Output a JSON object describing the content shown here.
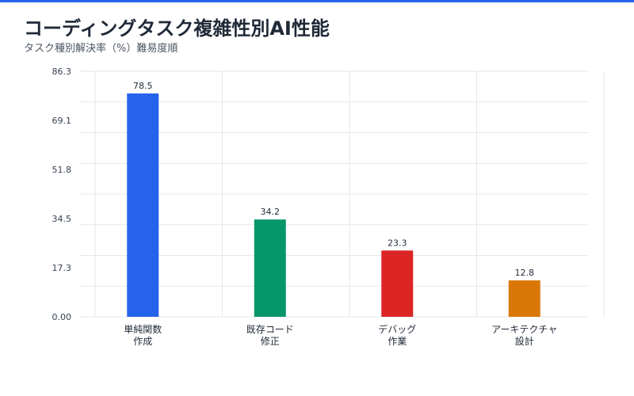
{
  "header": {
    "title": "コーディングタスク複雑性別AI性能",
    "subtitle": "タスク種別解決率（%）難易度順"
  },
  "colors": {
    "accent": "#2563eb",
    "grid": "#e5e7eb"
  },
  "chart_data": {
    "type": "bar",
    "title": "コーディングタスク複雑性別AI性能",
    "subtitle": "タスク種別解決率（%）難易度順",
    "xlabel": "",
    "ylabel": "",
    "ylim": [
      0,
      86.3
    ],
    "yticks": [
      "0.00",
      "17.3",
      "34.5",
      "51.8",
      "69.1",
      "86.3"
    ],
    "grid": true,
    "categories": [
      [
        "単純関数",
        "作成"
      ],
      [
        "既存コード",
        "修正"
      ],
      [
        "デバッグ",
        "作業"
      ],
      [
        "アーキテクチャ",
        "設計"
      ]
    ],
    "values": [
      78.5,
      34.2,
      23.3,
      12.8
    ],
    "value_labels": [
      "78.5",
      "34.2",
      "23.3",
      "12.8"
    ],
    "bar_colors": [
      "#2563eb",
      "#059669",
      "#dc2626",
      "#d97706"
    ]
  }
}
